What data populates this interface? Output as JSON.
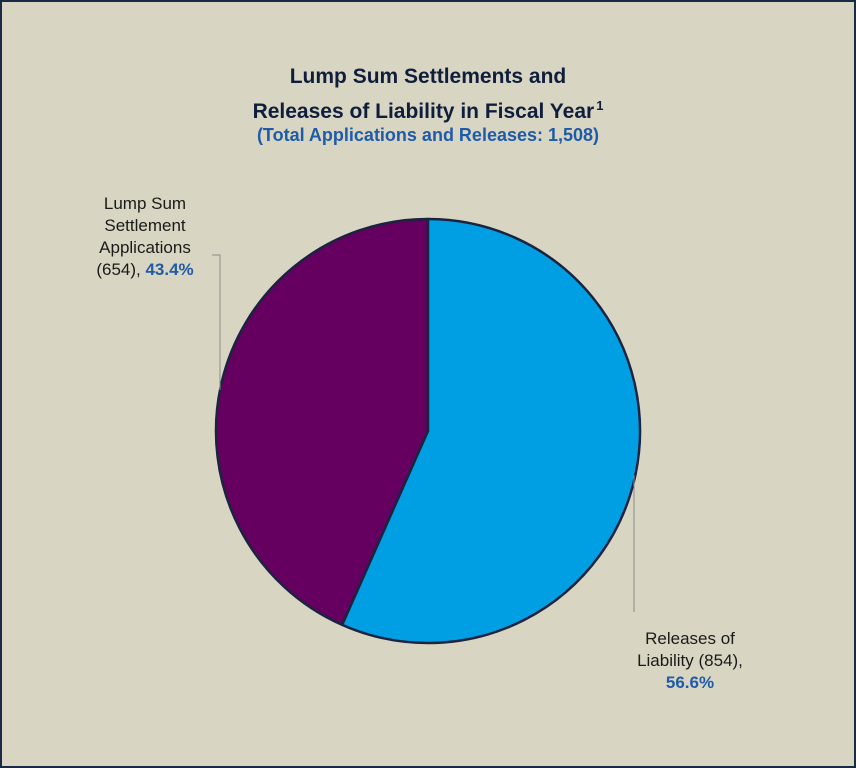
{
  "chart_data": {
    "type": "pie",
    "title_line1": "Lump Sum Settlements and",
    "title_line2": "Releases of Liability in Fiscal Year",
    "title_superscript": "1",
    "subtitle": "(Total Applications and Releases: 1,508)",
    "slices": [
      {
        "label_lines": [
          "Lump Sum",
          "Settlement",
          "Applications"
        ],
        "label_tail": "(654), ",
        "count": 654,
        "percent_text": "43.4%",
        "percent": 43.4,
        "color": "#650060"
      },
      {
        "label_lines": [
          "Releases of",
          "Liability (854),"
        ],
        "label_tail": "",
        "count": 854,
        "percent_text": "56.6%",
        "percent": 56.6,
        "color": "#009fe3"
      }
    ],
    "colors": {
      "background": "#d8d6c2",
      "border": "#1b2a44",
      "title": "#0f1e3c",
      "subtitle": "#1f5ba8",
      "slice_outline": "#1a2340"
    }
  }
}
